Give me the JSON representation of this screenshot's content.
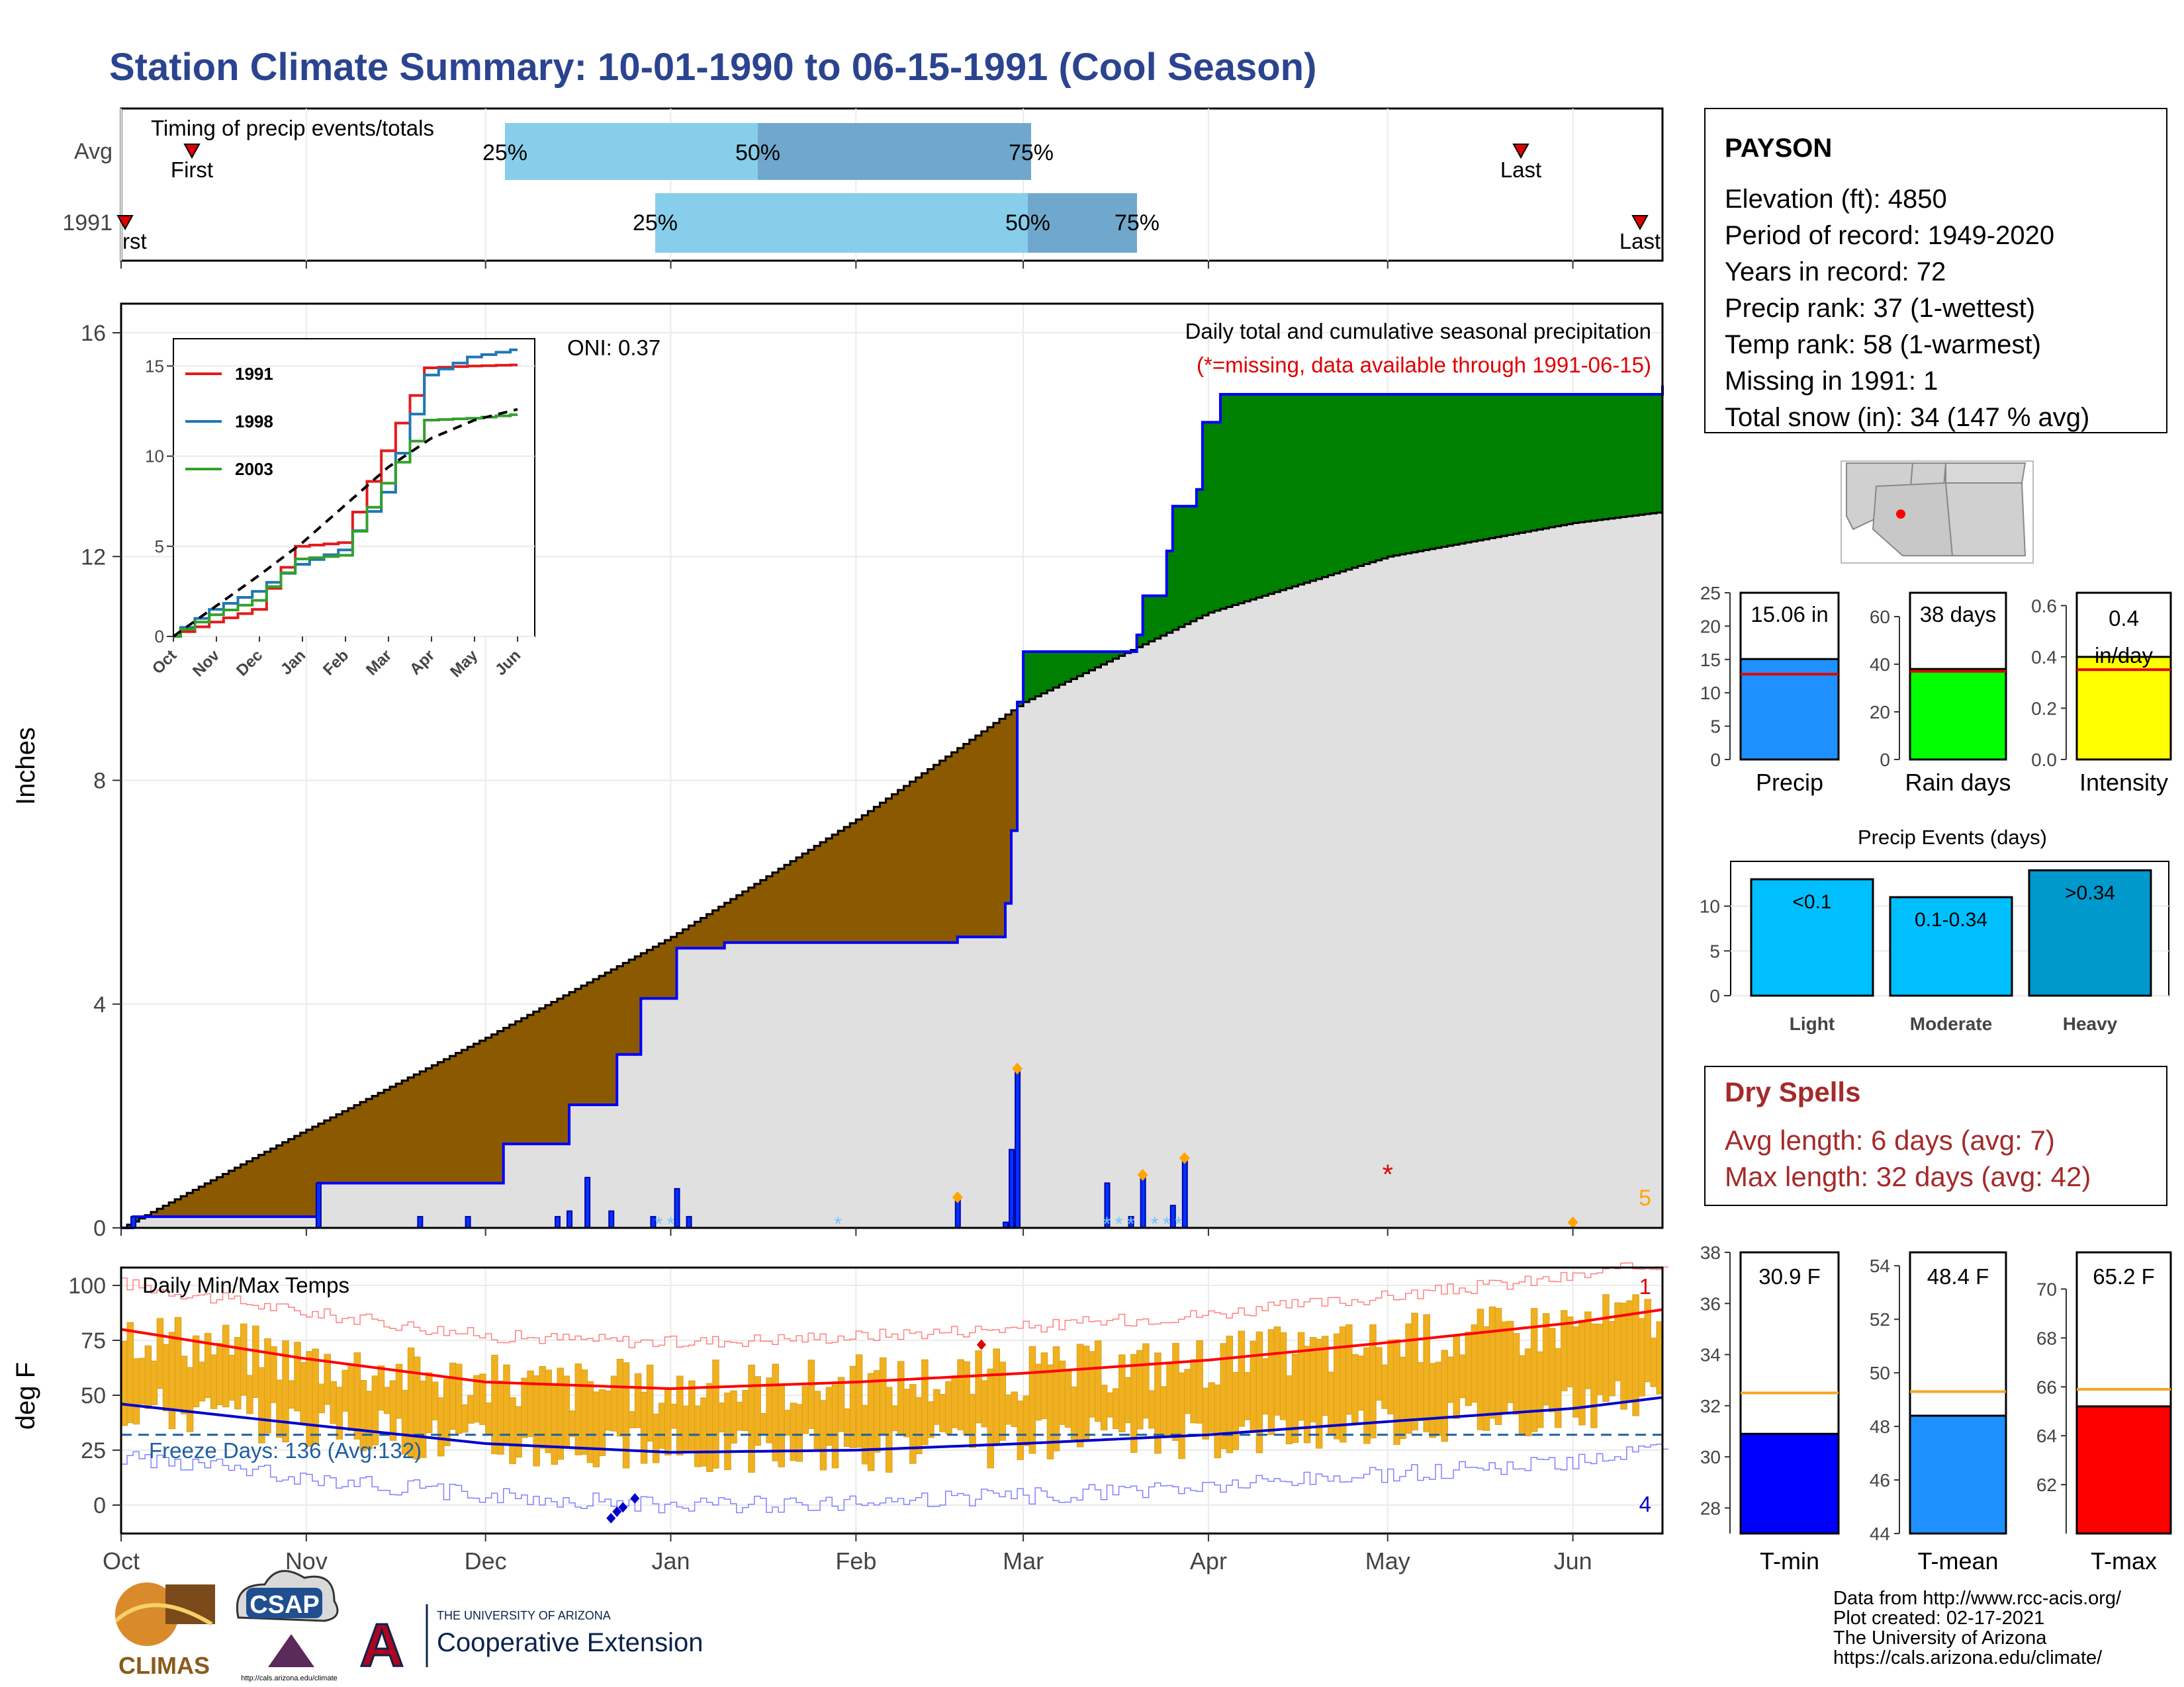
{
  "title": "Station Climate Summary: 10-01-1990 to 06-15-1991 (Cool Season)",
  "months": [
    "Oct",
    "Nov",
    "Dec",
    "Jan",
    "Feb",
    "Mar",
    "Apr",
    "May",
    "Jun"
  ],
  "timing": {
    "title": "Timing of precip events/totals",
    "rows": [
      "Avg",
      "1991"
    ],
    "pct_labels": [
      "25%",
      "50%",
      "75%"
    ],
    "first_label": "First",
    "first_label_cut": "rst",
    "last_label": "Last",
    "colors": {
      "light": "#87ceeb",
      "dark": "#6fa8cc",
      "marker": "#e00000"
    }
  },
  "precip_panel": {
    "ylabel": "Inches",
    "oni": "ONI: 0.37",
    "caption": "Daily total and cumulative seasonal precipitation",
    "missing_note": "(*=missing, data available through 1991-06-15)",
    "count_label": "5",
    "yticks": [
      "0",
      "4",
      "8",
      "12",
      "16"
    ],
    "colors": {
      "deficit": "#8b5a00",
      "surplus": "#008000",
      "normal": "#e0e0e0",
      "line": "#0000ff"
    }
  },
  "inset": {
    "yticks": [
      "0",
      "5",
      "10",
      "15"
    ],
    "xticks": [
      "Oct",
      "Nov",
      "Dec",
      "Jan",
      "Feb",
      "Mar",
      "Apr",
      "May",
      "Jun"
    ],
    "legend": [
      {
        "name": "1991",
        "color": "#e31a1c"
      },
      {
        "name": "1998",
        "color": "#1f78b4"
      },
      {
        "name": "2003",
        "color": "#33a02c"
      }
    ]
  },
  "temp_panel": {
    "ylabel": "deg F",
    "label": "Daily Min/Max Temps",
    "freeze_text": "Freeze Days: 136 (Avg:132)",
    "count_top": "1",
    "count_bottom": "4",
    "yticks": [
      "0",
      "25",
      "50",
      "75",
      "100"
    ]
  },
  "station": {
    "name": "PAYSON",
    "lines": [
      "Elevation (ft): 4850",
      "Period of record: 1949-2020",
      "Years in record: 72",
      "Precip rank: 37 (1-wettest)",
      "Temp rank: 58 (1-warmest)",
      "Missing in 1991: 1",
      "Total snow (in): 34 (147 % avg)"
    ]
  },
  "dry_spells": {
    "title": "Dry Spells",
    "avg_length": "Avg length: 6 days (avg: 7)",
    "max_length": "Max length: 32 days (avg: 42)"
  },
  "precip_events_title": "Precip Events (days)",
  "footer": {
    "lines": [
      "Data from http://www.rcc-acis.org/",
      "Plot created: 02-17-2021",
      "The University of Arizona",
      "https://cals.arizona.edu/climate/"
    ],
    "logo_climas": "CLIMAS",
    "logo_csap": "CSAP",
    "logo_csap_url": "http://cals.arizona.edu/climate",
    "logo_ua_small": "THE UNIVERSITY OF ARIZONA",
    "logo_ua_big": "Cooperative Extension",
    "logo_ua_letter": "A"
  },
  "chart_data": [
    {
      "type": "area",
      "name_key": "cumulative",
      "title": "Daily total and cumulative seasonal precipitation",
      "ylabel": "Inches",
      "ylim": [
        0,
        16
      ],
      "x_months": [
        "Oct",
        "Nov",
        "Dec",
        "Jan",
        "Feb",
        "Mar",
        "Apr",
        "May",
        "Jun"
      ],
      "normal_cumulative": {
        "x_day": [
          0,
          30,
          61,
          92,
          123,
          151,
          182,
          212,
          243,
          258
        ],
        "y": [
          0,
          1.7,
          3.4,
          5.2,
          7.3,
          9.4,
          11.0,
          12.0,
          12.6,
          12.8
        ]
      },
      "observed_cumulative": {
        "x_day": [
          0,
          2,
          32,
          33,
          63,
          64,
          75,
          83,
          87,
          93,
          101,
          123,
          140,
          148,
          149,
          150,
          151,
          165,
          170,
          171,
          175,
          176,
          180,
          181,
          184,
          258
        ],
        "y": [
          0,
          0.2,
          0.2,
          0.8,
          0.8,
          1.5,
          2.2,
          3.1,
          4.1,
          5.0,
          5.1,
          5.1,
          5.2,
          5.8,
          7.1,
          9.4,
          10.3,
          10.3,
          10.6,
          11.3,
          12.1,
          12.9,
          13.2,
          14.4,
          14.9,
          15.06
        ]
      },
      "daily_bars": {
        "x_day": [
          2,
          33,
          50,
          58,
          73,
          75,
          78,
          82,
          89,
          93,
          95,
          140,
          148,
          149,
          150,
          165,
          169,
          171,
          176,
          178
        ],
        "y": [
          0.2,
          0.8,
          0.2,
          0.2,
          0.2,
          0.3,
          0.9,
          0.3,
          0.2,
          0.7,
          0.2,
          0.5,
          0.1,
          1.4,
          2.8,
          0.8,
          0.2,
          0.9,
          0.4,
          1.2
        ]
      },
      "missing_day": 212,
      "oni": "ONI: 0.37"
    },
    {
      "type": "line",
      "name_key": "inset",
      "x": [
        "Oct",
        "Nov",
        "Dec",
        "Jan",
        "Feb",
        "Mar",
        "Apr",
        "May",
        "Jun"
      ],
      "ylim": [
        0,
        16
      ],
      "series": [
        {
          "name": "1991",
          "values": [
            0,
            0.8,
            1.5,
            5.0,
            5.2,
            10.3,
            14.9,
            15.0,
            15.06
          ]
        },
        {
          "name": "1998",
          "values": [
            0,
            1.5,
            2.5,
            4.0,
            4.8,
            8.0,
            14.5,
            15.5,
            15.9
          ]
        },
        {
          "name": "2003",
          "values": [
            0,
            1.2,
            2.0,
            4.3,
            4.5,
            8.5,
            12.0,
            12.1,
            12.3
          ]
        },
        {
          "name": "avg",
          "values": [
            0,
            1.7,
            3.4,
            5.2,
            7.3,
            9.4,
            11.0,
            12.0,
            12.6
          ]
        }
      ]
    },
    {
      "type": "bar",
      "name_key": "precip",
      "categories": [
        "Precip"
      ],
      "values": [
        15.06
      ],
      "avg": 12.8,
      "ylim": [
        0,
        25
      ],
      "yticks": [
        "0",
        "5",
        "10",
        "15",
        "20",
        "25"
      ],
      "label": "15.06 in",
      "color": "#1e90ff"
    },
    {
      "type": "bar",
      "name_key": "raindays",
      "categories": [
        "Rain days"
      ],
      "values": [
        38
      ],
      "avg": 37,
      "ylim": [
        0,
        70
      ],
      "yticks": [
        "0",
        "20",
        "40",
        "60"
      ],
      "label": "38 days",
      "color": "#00ff00"
    },
    {
      "type": "bar",
      "name_key": "intensity",
      "categories": [
        "Intensity"
      ],
      "values": [
        0.4
      ],
      "avg": 0.35,
      "ylim": [
        0,
        0.65
      ],
      "yticks": [
        "0.0",
        "0.2",
        "0.4",
        "0.6"
      ],
      "label_lines": [
        "0.4",
        "in/day"
      ],
      "color": "#ffff00"
    },
    {
      "type": "bar",
      "name_key": "events",
      "title": "Precip Events (days)",
      "categories": [
        "Light",
        "Moderate",
        "Heavy"
      ],
      "values": [
        13,
        11,
        14
      ],
      "bar_labels": [
        "<0.1",
        "0.1-0.34",
        ">0.34"
      ],
      "ylim": [
        0,
        15
      ],
      "yticks": [
        "0",
        "5",
        "10"
      ],
      "colors": [
        "#00bfff",
        "#00bfff",
        "#0099cc"
      ]
    },
    {
      "type": "line",
      "name_key": "temps",
      "title": "Daily Min/Max Temps",
      "ylabel": "deg F",
      "ylim": [
        -15,
        108
      ],
      "x_months": [
        "Oct",
        "Nov",
        "Dec",
        "Jan",
        "Feb",
        "Mar",
        "Apr",
        "May",
        "Jun"
      ],
      "avg_max": {
        "x_day": [
          0,
          30,
          61,
          92,
          123,
          151,
          182,
          212,
          243,
          258
        ],
        "y": [
          80,
          67,
          56,
          53,
          56,
          60,
          66,
          74,
          83,
          89
        ]
      },
      "avg_min": {
        "x_day": [
          0,
          30,
          61,
          92,
          123,
          151,
          182,
          212,
          243,
          258
        ],
        "y": [
          46,
          37,
          28,
          24,
          25,
          28,
          32,
          38,
          44,
          49
        ]
      },
      "freeze_threshold": 32,
      "freeze_days": "Freeze Days: 136 (Avg:132)"
    },
    {
      "type": "bar",
      "name_key": "tmin",
      "categories": [
        "T-min"
      ],
      "values": [
        30.9
      ],
      "avg": 32.5,
      "ylim": [
        27,
        38
      ],
      "yticks": [
        "28",
        "30",
        "32",
        "34",
        "36",
        "38"
      ],
      "label": "30.9 F",
      "color": "#0000ff"
    },
    {
      "type": "bar",
      "name_key": "tmean",
      "categories": [
        "T-mean"
      ],
      "values": [
        48.4
      ],
      "avg": 49.3,
      "ylim": [
        44,
        54.5
      ],
      "yticks": [
        "44",
        "46",
        "48",
        "50",
        "52",
        "54"
      ],
      "label": "48.4 F",
      "color": "#1e90ff"
    },
    {
      "type": "bar",
      "name_key": "tmax",
      "categories": [
        "T-max"
      ],
      "values": [
        65.2
      ],
      "avg": 65.9,
      "ylim": [
        60,
        71.5
      ],
      "yticks": [
        "62",
        "64",
        "66",
        "68",
        "70"
      ],
      "label": "65.2 F",
      "color": "#ff0000"
    }
  ]
}
